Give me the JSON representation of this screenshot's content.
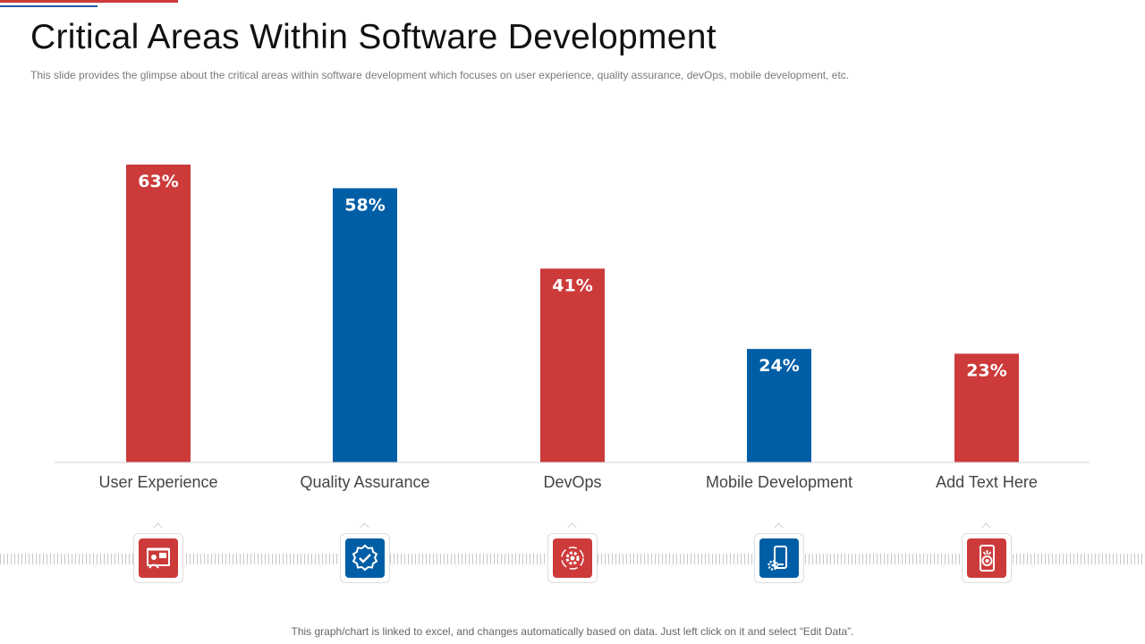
{
  "header": {
    "title": "Critical Areas Within Software Development",
    "subtitle": "This slide provides  the glimpse about the critical areas within software  development  which focuses on user experience, quality assurance, devOps,  mobile development,  etc."
  },
  "footer": {
    "note": "This graph/chart is linked to excel,  and changes automatically based on data. Just left click on it and select “Edit Data”."
  },
  "colors": {
    "red": "#cc3a3a",
    "blue": "#005ea6"
  },
  "icons": [
    {
      "name": "user-experience-presentation-icon",
      "color": "red"
    },
    {
      "name": "quality-badge-check-icon",
      "color": "blue"
    },
    {
      "name": "devops-gear-cycle-icon",
      "color": "red"
    },
    {
      "name": "mobile-gear-icon",
      "color": "blue"
    },
    {
      "name": "mobile-target-icon",
      "color": "red"
    }
  ],
  "chart_data": {
    "type": "bar",
    "categories": [
      "User Experience",
      "Quality Assurance",
      "DevOps",
      "Mobile Development",
      "Add Text Here"
    ],
    "values": [
      63,
      58,
      41,
      24,
      23
    ],
    "value_labels": [
      "63%",
      "58%",
      "41%",
      "24%",
      "23%"
    ],
    "bar_colors": [
      "#cc3a3a",
      "#005ea6",
      "#cc3a3a",
      "#005ea6",
      "#cc3a3a"
    ],
    "ylim": [
      0,
      63
    ],
    "grid": false,
    "legend": "none"
  }
}
